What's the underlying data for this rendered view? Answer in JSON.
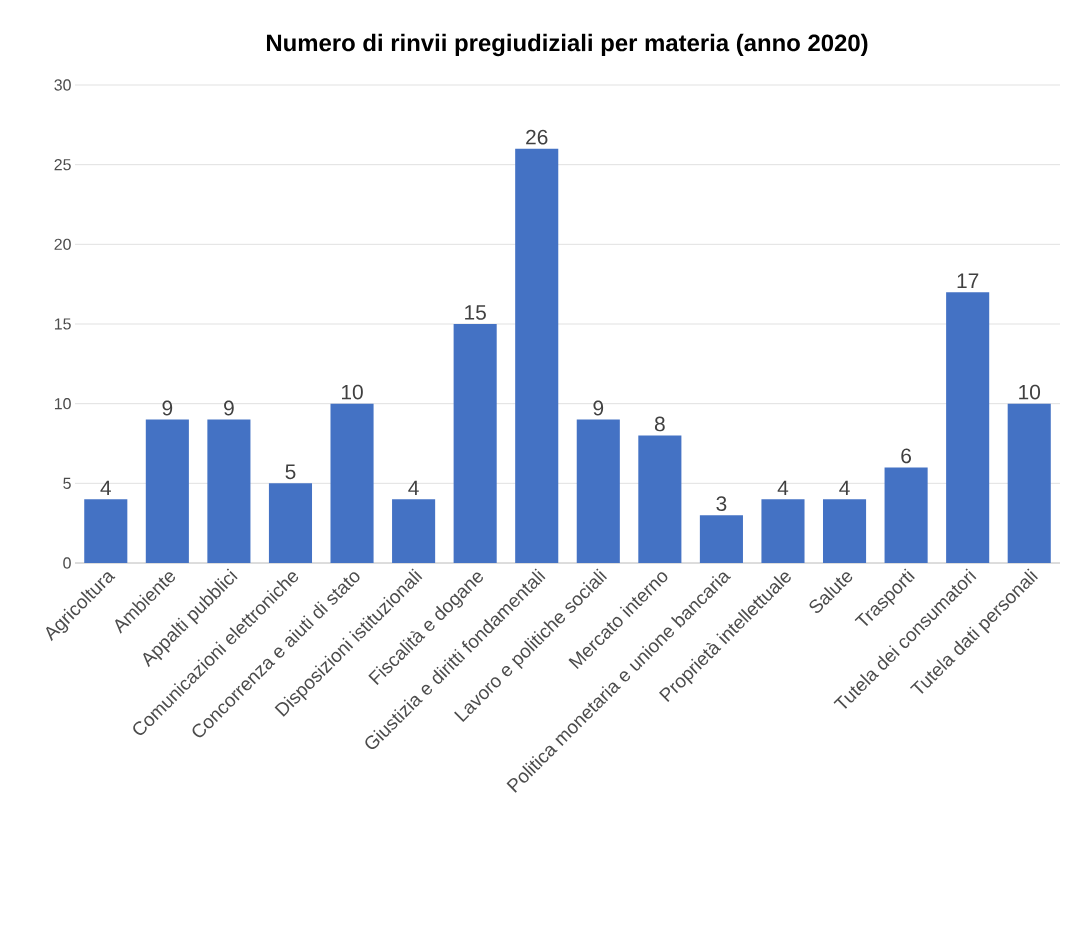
{
  "chart_data": {
    "type": "bar",
    "title": "Numero di rinvii pregiudiziali per materia (anno 2020)",
    "categories": [
      "Agricoltura",
      "Ambiente",
      "Appalti pubblici",
      "Comunicazioni elettroniche",
      "Concorrenza e aiuti di stato",
      "Disposizioni istituzionali",
      "Fiscalità e dogane",
      "Giustizia e diritti fondamentali",
      "Lavoro e politiche sociali",
      "Mercato interno",
      "Politica monetaria e unione bancaria",
      "Proprietà intellettuale",
      "Salute",
      "Trasporti",
      "Tutela dei consumatori",
      "Tutela dati personali"
    ],
    "values": [
      4,
      9,
      9,
      5,
      10,
      4,
      15,
      26,
      9,
      8,
      3,
      4,
      4,
      6,
      17,
      10
    ],
    "color": "#4472c4",
    "ylim": [
      0,
      30
    ],
    "yticks": [
      0,
      5,
      10,
      15,
      20,
      25,
      30
    ],
    "grid": "y",
    "data_labels": true
  }
}
